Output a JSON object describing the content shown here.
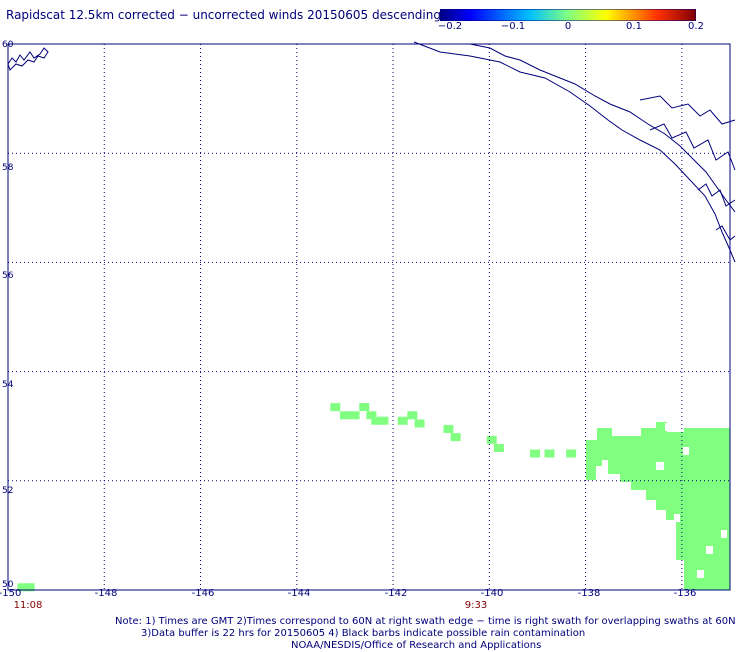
{
  "title": "Rapidscat 12.5km corrected − uncorrected winds 20150605 descending",
  "colorbar": {
    "labels": [
      "−0.2",
      "−0.1",
      "0",
      "0.1",
      "0.2"
    ],
    "min": -0.2,
    "max": 0.2
  },
  "axes": {
    "lon_labels": [
      "-150",
      "-148",
      "-146",
      "-144",
      "-142",
      "-140",
      "-138",
      "-136"
    ],
    "lat_labels": [
      "60",
      "58",
      "56",
      "54",
      "52",
      "50"
    ],
    "lon_range": [
      -150,
      -135
    ],
    "lat_range": [
      50,
      60
    ]
  },
  "time_labels": {
    "left": "11:08",
    "right": "9:33"
  },
  "notes": {
    "line1": "Note: 1) Times are GMT 2)Times correspond to 60N at right swath edge − time is right swath for overlapping swaths at 60N",
    "line2": "3)Data buffer is 22 hrs for 20150605 4) Black barbs indicate possible rain contamination",
    "line3": "NOAA/NESDIS/Office of Research and Applications"
  },
  "colors": {
    "coast": "#00007a",
    "data_fill": "#80ff80",
    "grid": "#00007a",
    "time": "#800000"
  },
  "chart_data": {
    "type": "heatmap",
    "value_note": "all visible cells near 0 (green)",
    "cell_value": 0,
    "cells": [
      {
        "lon": -149.7,
        "lat": 50.05
      },
      {
        "lon": -149.55,
        "lat": 50.05
      },
      {
        "lon": -143.2,
        "lat": 53.35
      },
      {
        "lon": -143.0,
        "lat": 53.2
      },
      {
        "lon": -142.8,
        "lat": 53.2
      },
      {
        "lon": -142.6,
        "lat": 53.35
      },
      {
        "lon": -142.45,
        "lat": 53.2
      },
      {
        "lon": -142.35,
        "lat": 53.1
      },
      {
        "lon": -142.2,
        "lat": 53.1
      },
      {
        "lon": -141.8,
        "lat": 53.1
      },
      {
        "lon": -141.6,
        "lat": 53.2
      },
      {
        "lon": -141.45,
        "lat": 53.05
      },
      {
        "lon": -140.85,
        "lat": 52.95
      },
      {
        "lon": -140.7,
        "lat": 52.8
      },
      {
        "lon": -139.95,
        "lat": 52.75
      },
      {
        "lon": -139.8,
        "lat": 52.6
      },
      {
        "lon": -139.05,
        "lat": 52.5
      },
      {
        "lon": -138.75,
        "lat": 52.5
      },
      {
        "lon": -138.3,
        "lat": 52.5
      }
    ]
  }
}
